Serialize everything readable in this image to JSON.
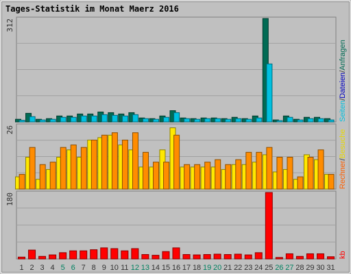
{
  "chart_data": [
    {
      "type": "bar",
      "title": "Tages-Statistik im Monat Maerz 2016",
      "categories": [
        "1",
        "2",
        "3",
        "4",
        "5",
        "6",
        "7",
        "8",
        "9",
        "10",
        "11",
        "12",
        "13",
        "14",
        "15",
        "16",
        "17",
        "18",
        "19",
        "20",
        "21",
        "22",
        "23",
        "24",
        "25",
        "26",
        "27",
        "28",
        "29",
        "30",
        "31"
      ],
      "weekend_categories": [
        "5",
        "6",
        "12",
        "13",
        "19",
        "20",
        "26",
        "27"
      ],
      "ymax_label": "312",
      "ylim": [
        0,
        312
      ],
      "series": [
        {
          "name": "Anfragen",
          "color": "#006b54",
          "values": [
            8,
            26,
            8,
            10,
            18,
            18,
            24,
            24,
            30,
            28,
            24,
            28,
            12,
            10,
            18,
            34,
            12,
            10,
            12,
            12,
            10,
            14,
            10,
            18,
            312,
            6,
            18,
            8,
            14,
            14,
            10
          ]
        },
        {
          "name": "Dateien",
          "color": "#00c8e8",
          "values": [
            0,
            0,
            0,
            0,
            0,
            0,
            0,
            0,
            0,
            0,
            0,
            0,
            0,
            0,
            0,
            0,
            0,
            0,
            0,
            0,
            0,
            0,
            0,
            0,
            0,
            0,
            0,
            0,
            0,
            0,
            0
          ]
        },
        {
          "name": "Seiten",
          "color": "#00c0e0",
          "values": [
            5,
            16,
            6,
            8,
            14,
            14,
            18,
            18,
            22,
            20,
            18,
            22,
            10,
            8,
            14,
            28,
            10,
            8,
            10,
            10,
            8,
            10,
            8,
            12,
            175,
            4,
            14,
            6,
            10,
            10,
            6
          ]
        }
      ],
      "legend_labels": [
        "Seiten",
        "/",
        "Dateien",
        "/",
        "Anfragen"
      ]
    },
    {
      "type": "bar",
      "ymax_label": "26",
      "ylim": [
        0,
        26
      ],
      "series": [
        {
          "name": "Besuche",
          "color": "#ffe800",
          "values": [
            5,
            13,
            4,
            8,
            13,
            16,
            13,
            20,
            21,
            22,
            18,
            16,
            9,
            9,
            16,
            25,
            9,
            9,
            9,
            9,
            8,
            10,
            10,
            11,
            14,
            7,
            8,
            4,
            14,
            12,
            6
          ]
        },
        {
          "name": "Rechner",
          "color": "#ff8c00",
          "values": [
            6,
            17,
            10,
            11,
            17,
            18,
            17,
            20,
            22,
            23,
            20,
            23,
            15,
            11,
            11,
            22,
            10,
            10,
            11,
            12,
            10,
            12,
            15,
            15,
            17,
            13,
            13,
            5,
            13,
            16,
            6
          ]
        }
      ],
      "legend_labels": [
        "Rechner",
        "/",
        "Besuche"
      ]
    },
    {
      "type": "bar",
      "ymax_label": "180",
      "ylim": [
        0,
        180
      ],
      "series": [
        {
          "name": "kb",
          "color": "#ff0000",
          "values": [
            5,
            24,
            7,
            11,
            17,
            22,
            22,
            25,
            30,
            28,
            22,
            28,
            12,
            10,
            20,
            30,
            12,
            11,
            12,
            13,
            12,
            13,
            11,
            17,
            180,
            4,
            14,
            7,
            14,
            14,
            6
          ]
        }
      ],
      "legend_labels": [
        "kb"
      ]
    }
  ],
  "colors": {
    "background": "#c0c0c0",
    "title": "#0000a0",
    "axis_label": "#303030",
    "day_label": "#303030",
    "weekend_label": "#008060",
    "current_day_label": "#ff0000",
    "legend_seiten": "#00c0e0",
    "legend_dateien": "#0000c0",
    "legend_anfragen": "#006b54",
    "legend_besuche": "#e8d800",
    "legend_rechner": "#ff6000",
    "legend_kb": "#ff0000"
  }
}
